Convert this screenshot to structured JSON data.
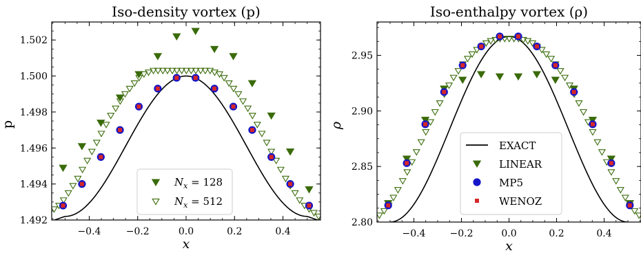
{
  "chart_data": [
    {
      "type": "line",
      "title": "Iso-density vortex (p)",
      "xlabel": "x",
      "ylabel": "p",
      "xlim": [
        -0.555,
        0.555
      ],
      "ylim": [
        1.492,
        1.503
      ],
      "xticks": [
        -0.4,
        -0.2,
        0.0,
        0.2,
        0.4
      ],
      "xtick_labels": [
        "−0.4",
        "−0.2",
        "0.0",
        "0.2",
        "0.4"
      ],
      "yticks": [
        1.492,
        1.494,
        1.496,
        1.498,
        1.5,
        1.502
      ],
      "ytick_labels": [
        "1.492",
        "1.494",
        "1.496",
        "1.498",
        "1.500",
        "1.502"
      ],
      "legend_position": "lower-center",
      "legend": [
        {
          "marker": "filled-down-triangle",
          "color": "#3a6b0a",
          "label_prefix": "N",
          "label_sub": "x",
          "label_value": " = 128"
        },
        {
          "marker": "open-down-triangle",
          "color": "#3a6b0a",
          "label_prefix": "N",
          "label_sub": "x",
          "label_value": " = 512"
        }
      ],
      "series": [
        {
          "kind": "curve",
          "color": "#000000",
          "amplitude": 0.0078,
          "offset": 1.5,
          "center": 0.0,
          "halfwidth": 0.5
        },
        {
          "kind": "scatter-filled-down-triangle",
          "color": "#3a6b0a",
          "x": [
            -0.508,
            -0.43,
            -0.352,
            -0.273,
            -0.195,
            -0.117,
            -0.039,
            0.039,
            0.117,
            0.195,
            0.273,
            0.352,
            0.43,
            0.508
          ],
          "y": [
            1.4949,
            1.4961,
            1.4974,
            1.4988,
            1.5001,
            1.5011,
            1.5022,
            1.5025,
            1.5015,
            1.5011,
            1.4996,
            1.4978,
            1.4958,
            1.4937
          ]
        },
        {
          "kind": "scatter-open-down-triangle",
          "color": "#3a6b0a",
          "x": [
            -0.545,
            -0.525,
            -0.506,
            -0.486,
            -0.467,
            -0.447,
            -0.428,
            -0.408,
            -0.389,
            -0.369,
            -0.35,
            -0.33,
            -0.311,
            -0.291,
            -0.272,
            -0.252,
            -0.233,
            -0.213,
            -0.194,
            -0.174,
            -0.155,
            -0.135,
            -0.116,
            -0.096,
            -0.077,
            -0.057,
            -0.038,
            -0.018,
            0.001,
            0.021,
            0.04,
            0.06,
            0.079,
            0.099,
            0.118,
            0.138,
            0.157,
            0.177,
            0.196,
            0.216,
            0.235,
            0.255,
            0.274,
            0.294,
            0.313,
            0.333,
            0.352,
            0.372,
            0.391,
            0.411,
            0.43,
            0.45,
            0.469,
            0.489,
            0.508,
            0.528,
            0.547
          ],
          "y": [
            1.4926,
            1.4928,
            1.4931,
            1.4935,
            1.4939,
            1.4943,
            1.4948,
            1.4953,
            1.4958,
            1.4963,
            1.4968,
            1.4973,
            1.4978,
            1.4982,
            1.4986,
            1.499,
            1.4993,
            1.4996,
            1.4999,
            1.5001,
            1.5002,
            1.5003,
            1.5003,
            1.5003,
            1.5003,
            1.5003,
            1.5003,
            1.5003,
            1.5003,
            1.5003,
            1.5003,
            1.5003,
            1.5003,
            1.5003,
            1.5002,
            1.5001,
            1.4999,
            1.4996,
            1.4993,
            1.499,
            1.4986,
            1.4982,
            1.4978,
            1.4973,
            1.4968,
            1.4963,
            1.4958,
            1.4953,
            1.4948,
            1.4943,
            1.4939,
            1.4935,
            1.4931,
            1.4928,
            1.4926,
            1.4924,
            1.4922
          ]
        },
        {
          "kind": "scatter-circle",
          "color": "#1515c8",
          "x": [
            -0.508,
            -0.43,
            -0.352,
            -0.273,
            -0.195,
            -0.117,
            -0.039,
            0.039,
            0.117,
            0.195,
            0.273,
            0.352,
            0.43,
            0.508
          ],
          "y": [
            1.4928,
            1.494,
            1.4955,
            1.497,
            1.4983,
            1.4993,
            1.4999,
            1.4999,
            1.4993,
            1.4983,
            1.497,
            1.4955,
            1.494,
            1.4928
          ]
        },
        {
          "kind": "scatter-square",
          "color": "#d62728",
          "x": [
            -0.508,
            -0.43,
            -0.352,
            -0.273,
            -0.195,
            -0.117,
            -0.039,
            0.039,
            0.117,
            0.195,
            0.273,
            0.352,
            0.43,
            0.508
          ],
          "y": [
            1.4928,
            1.494,
            1.4955,
            1.497,
            1.4983,
            1.4993,
            1.4999,
            1.4999,
            1.4993,
            1.4983,
            1.497,
            1.4955,
            1.494,
            1.4928
          ]
        }
      ]
    },
    {
      "type": "line",
      "title": "Iso-enthalpy vortex (ρ)",
      "xlabel": "x",
      "ylabel": "ρ",
      "xlim": [
        -0.555,
        0.555
      ],
      "ylim": [
        2.8,
        2.98
      ],
      "xticks": [
        -0.4,
        -0.2,
        0.0,
        0.2,
        0.4
      ],
      "xtick_labels": [
        "−0.4",
        "−0.2",
        "0.0",
        "0.2",
        "0.4"
      ],
      "yticks": [
        2.8,
        2.85,
        2.9,
        2.95
      ],
      "ytick_labels": [
        "2.80",
        "2.85",
        "2.90",
        "2.95"
      ],
      "legend_position": "lower-center",
      "legend": [
        {
          "marker": "line",
          "color": "#000000",
          "label": "EXACT"
        },
        {
          "marker": "filled-down-triangle",
          "color": "#3a6b0a",
          "label": "LINEAR"
        },
        {
          "marker": "circle",
          "color": "#1515c8",
          "label": "MP5"
        },
        {
          "marker": "square",
          "color": "#d62728",
          "label": "WENOZ"
        }
      ],
      "series": [
        {
          "kind": "curve",
          "color": "#000000",
          "amplitude": 0.167,
          "offset": 2.967,
          "center": 0.0,
          "halfwidth": 0.5
        },
        {
          "kind": "scatter-filled-down-triangle",
          "color": "#3a6b0a",
          "x": [
            -0.508,
            -0.43,
            -0.352,
            -0.273,
            -0.195,
            -0.117,
            -0.039,
            0.039,
            0.117,
            0.195,
            0.273,
            0.352,
            0.43,
            0.508
          ],
          "y": [
            2.817,
            2.857,
            2.892,
            2.92,
            2.928,
            2.933,
            2.931,
            2.931,
            2.933,
            2.928,
            2.92,
            2.892,
            2.857,
            2.817
          ]
        },
        {
          "kind": "scatter-open-down-triangle",
          "color": "#3a6b0a",
          "x": [
            -0.545,
            -0.525,
            -0.506,
            -0.486,
            -0.467,
            -0.447,
            -0.428,
            -0.408,
            -0.389,
            -0.369,
            -0.35,
            -0.33,
            -0.311,
            -0.291,
            -0.272,
            -0.252,
            -0.233,
            -0.213,
            -0.194,
            -0.174,
            -0.155,
            -0.135,
            -0.116,
            -0.096,
            -0.077,
            -0.057,
            -0.038,
            -0.018,
            0.001,
            0.021,
            0.04,
            0.06,
            0.079,
            0.099,
            0.118,
            0.138,
            0.157,
            0.177,
            0.196,
            0.216,
            0.235,
            0.255,
            0.274,
            0.294,
            0.313,
            0.333,
            0.352,
            0.372,
            0.391,
            0.411,
            0.43,
            0.45,
            0.469,
            0.489,
            0.508,
            0.528,
            0.547
          ],
          "y": [
            2.806,
            2.81,
            2.815,
            2.822,
            2.829,
            2.837,
            2.845,
            2.854,
            2.863,
            2.872,
            2.881,
            2.89,
            2.899,
            2.907,
            2.915,
            2.923,
            2.93,
            2.936,
            2.942,
            2.947,
            2.951,
            2.955,
            2.958,
            2.961,
            2.963,
            2.964,
            2.965,
            2.965,
            2.965,
            2.965,
            2.965,
            2.964,
            2.963,
            2.961,
            2.958,
            2.955,
            2.951,
            2.947,
            2.942,
            2.936,
            2.93,
            2.923,
            2.915,
            2.907,
            2.899,
            2.89,
            2.881,
            2.872,
            2.863,
            2.854,
            2.845,
            2.837,
            2.829,
            2.822,
            2.815,
            2.81,
            2.806
          ]
        },
        {
          "kind": "scatter-circle",
          "color": "#1515c8",
          "x": [
            -0.508,
            -0.43,
            -0.352,
            -0.273,
            -0.195,
            -0.117,
            -0.039,
            0.039,
            0.117,
            0.195,
            0.273,
            0.352,
            0.43,
            0.508
          ],
          "y": [
            2.815,
            2.853,
            2.888,
            2.917,
            2.941,
            2.958,
            2.967,
            2.967,
            2.958,
            2.941,
            2.917,
            2.888,
            2.853,
            2.815
          ]
        },
        {
          "kind": "scatter-square",
          "color": "#d62728",
          "x": [
            -0.508,
            -0.43,
            -0.352,
            -0.273,
            -0.195,
            -0.117,
            -0.039,
            0.039,
            0.117,
            0.195,
            0.273,
            0.352,
            0.43,
            0.508
          ],
          "y": [
            2.815,
            2.853,
            2.888,
            2.917,
            2.941,
            2.958,
            2.967,
            2.967,
            2.958,
            2.941,
            2.917,
            2.888,
            2.853,
            2.815
          ]
        }
      ]
    }
  ]
}
